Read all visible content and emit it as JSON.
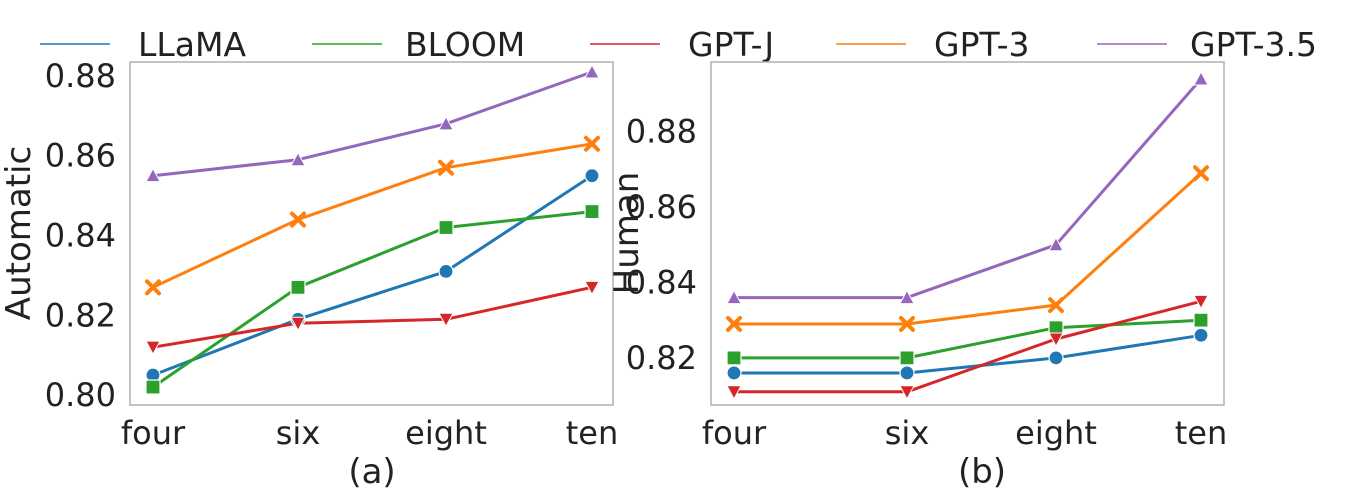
{
  "legend": [
    {
      "name": "LLaMA",
      "color": "#1f77b4"
    },
    {
      "name": "BLOOM",
      "color": "#2ca02c"
    },
    {
      "name": "GPT-J",
      "color": "#d62728"
    },
    {
      "name": "GPT-3",
      "color": "#ff7f0e"
    },
    {
      "name": "GPT-3.5",
      "color": "#9467bd"
    }
  ],
  "chart_data": [
    {
      "type": "line",
      "caption": "(a)",
      "ylabel": "Automatic",
      "xlabel": "",
      "categories": [
        "four",
        "six",
        "eight",
        "ten"
      ],
      "ylim": [
        0.7975,
        0.8835
      ],
      "yticks": [
        0.8,
        0.82,
        0.84,
        0.86,
        0.88
      ],
      "ytick_labels": [
        "0.80",
        "0.82",
        "0.84",
        "0.86",
        "0.88"
      ],
      "grid": false,
      "legend_position": "top",
      "series": [
        {
          "name": "LLaMA",
          "color": "#1f77b4",
          "marker": "circle",
          "values": [
            0.805,
            0.819,
            0.831,
            0.855
          ]
        },
        {
          "name": "BLOOM",
          "color": "#2ca02c",
          "marker": "square",
          "values": [
            0.802,
            0.827,
            0.842,
            0.846
          ]
        },
        {
          "name": "GPT-J",
          "color": "#d62728",
          "marker": "triangle-down",
          "values": [
            0.812,
            0.818,
            0.819,
            0.827
          ]
        },
        {
          "name": "GPT-3",
          "color": "#ff7f0e",
          "marker": "x",
          "values": [
            0.827,
            0.844,
            0.857,
            0.863
          ]
        },
        {
          "name": "GPT-3.5",
          "color": "#9467bd",
          "marker": "triangle-up",
          "values": [
            0.855,
            0.859,
            0.868,
            0.881
          ]
        }
      ]
    },
    {
      "type": "line",
      "caption": "(b)",
      "ylabel": "Human",
      "xlabel": "",
      "categories": [
        "four",
        "six",
        "eight",
        "ten"
      ],
      "ylim": [
        0.8075,
        0.8985
      ],
      "yticks": [
        0.82,
        0.84,
        0.86,
        0.88
      ],
      "ytick_labels": [
        "0.82",
        "0.84",
        "0.86",
        "0.88"
      ],
      "grid": false,
      "legend_position": "top",
      "series": [
        {
          "name": "LLaMA",
          "color": "#1f77b4",
          "marker": "circle",
          "values": [
            0.816,
            0.816,
            0.82,
            0.826
          ]
        },
        {
          "name": "BLOOM",
          "color": "#2ca02c",
          "marker": "square",
          "values": [
            0.82,
            0.82,
            0.828,
            0.83
          ]
        },
        {
          "name": "GPT-J",
          "color": "#d62728",
          "marker": "triangle-down",
          "values": [
            0.811,
            0.811,
            0.825,
            0.835
          ]
        },
        {
          "name": "GPT-3",
          "color": "#ff7f0e",
          "marker": "x",
          "values": [
            0.829,
            0.829,
            0.834,
            0.869
          ]
        },
        {
          "name": "GPT-3.5",
          "color": "#9467bd",
          "marker": "triangle-up",
          "values": [
            0.836,
            0.836,
            0.85,
            0.894
          ]
        }
      ]
    }
  ]
}
